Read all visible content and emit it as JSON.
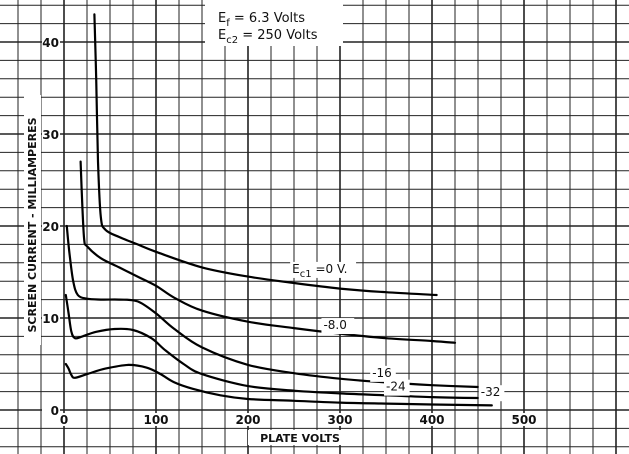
{
  "conditions": {
    "line1": {
      "symbol": "E",
      "sub": "f",
      "rest": " = 6.3 Volts"
    },
    "line2": {
      "symbol": "E",
      "sub": "c2",
      "rest": " = 250 Volts"
    }
  },
  "chart_data": {
    "type": "line",
    "xlabel": "PLATE VOLTS",
    "ylabel": "SCREEN CURRENT - MILLIAMPERES",
    "xlim": [
      0,
      500
    ],
    "ylim": [
      0,
      43
    ],
    "x_ticks": [
      0,
      100,
      200,
      300,
      400,
      500
    ],
    "y_ticks": [
      0,
      10,
      20,
      30,
      40
    ],
    "grid": true,
    "series": [
      {
        "name": "0 V.",
        "label_parts": {
          "symbol": "E",
          "sub": "c1",
          "rest": " =0 V."
        },
        "points": [
          [
            33,
            43
          ],
          [
            35,
            36
          ],
          [
            37,
            27
          ],
          [
            40,
            21
          ],
          [
            45,
            19.6
          ],
          [
            60,
            18.8
          ],
          [
            80,
            18
          ],
          [
            100,
            17.2
          ],
          [
            150,
            15.5
          ],
          [
            200,
            14.5
          ],
          [
            250,
            13.8
          ],
          [
            300,
            13.2
          ],
          [
            350,
            12.8
          ],
          [
            405,
            12.5
          ]
        ]
      },
      {
        "name": "-8.0",
        "label_parts": {
          "symbol": "",
          "sub": "",
          "rest": "-8.0"
        },
        "points": [
          [
            18,
            27
          ],
          [
            20,
            22
          ],
          [
            22,
            18.5
          ],
          [
            25,
            17.8
          ],
          [
            40,
            16.5
          ],
          [
            60,
            15.5
          ],
          [
            80,
            14.5
          ],
          [
            100,
            13.5
          ],
          [
            120,
            12.2
          ],
          [
            150,
            10.8
          ],
          [
            200,
            9.6
          ],
          [
            250,
            8.9
          ],
          [
            300,
            8.3
          ],
          [
            350,
            7.8
          ],
          [
            400,
            7.5
          ],
          [
            425,
            7.3
          ]
        ]
      },
      {
        "name": "-16",
        "label_parts": {
          "symbol": "",
          "sub": "",
          "rest": "-16"
        },
        "points": [
          [
            3,
            20
          ],
          [
            6,
            17
          ],
          [
            10,
            14
          ],
          [
            15,
            12.5
          ],
          [
            25,
            12.1
          ],
          [
            40,
            12
          ],
          [
            60,
            12
          ],
          [
            80,
            11.8
          ],
          [
            100,
            10.5
          ],
          [
            120,
            8.8
          ],
          [
            150,
            6.8
          ],
          [
            200,
            4.9
          ],
          [
            250,
            4
          ],
          [
            300,
            3.4
          ],
          [
            350,
            3
          ],
          [
            400,
            2.7
          ],
          [
            450,
            2.5
          ]
        ]
      },
      {
        "name": "-24",
        "label_parts": {
          "symbol": "",
          "sub": "",
          "rest": "-24"
        },
        "points": [
          [
            2,
            12.5
          ],
          [
            5,
            10.5
          ],
          [
            8,
            8.5
          ],
          [
            12,
            7.8
          ],
          [
            20,
            8
          ],
          [
            35,
            8.5
          ],
          [
            55,
            8.8
          ],
          [
            75,
            8.7
          ],
          [
            95,
            7.8
          ],
          [
            110,
            6.5
          ],
          [
            130,
            5
          ],
          [
            150,
            3.9
          ],
          [
            200,
            2.6
          ],
          [
            250,
            2.1
          ],
          [
            300,
            1.8
          ],
          [
            350,
            1.6
          ],
          [
            400,
            1.4
          ],
          [
            450,
            1.3
          ]
        ]
      },
      {
        "name": "-32",
        "label_parts": {
          "symbol": "",
          "sub": "",
          "rest": "-32"
        },
        "points": [
          [
            2,
            5
          ],
          [
            5,
            4.5
          ],
          [
            8,
            3.8
          ],
          [
            12,
            3.5
          ],
          [
            25,
            3.9
          ],
          [
            45,
            4.5
          ],
          [
            70,
            4.9
          ],
          [
            90,
            4.6
          ],
          [
            105,
            3.9
          ],
          [
            120,
            3
          ],
          [
            140,
            2.3
          ],
          [
            170,
            1.6
          ],
          [
            200,
            1.2
          ],
          [
            250,
            1
          ],
          [
            300,
            0.8
          ],
          [
            350,
            0.7
          ],
          [
            400,
            0.6
          ],
          [
            465,
            0.5
          ]
        ]
      }
    ]
  }
}
